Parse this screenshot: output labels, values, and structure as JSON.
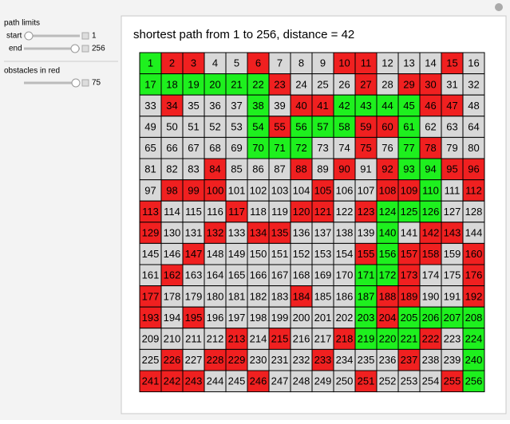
{
  "controls": {
    "section1": "path limits",
    "start_label": "start",
    "start_value": 1,
    "end_label": "end",
    "end_value": 256,
    "section2": "obstacles in red",
    "obstacles_value": 75
  },
  "title": "shortest path from 1 to 256, distance = 42",
  "grid": {
    "numbers": [
      [
        1,
        2,
        3,
        4,
        5,
        6,
        7,
        8,
        9,
        10,
        11,
        12,
        13,
        14,
        15,
        16
      ],
      [
        17,
        18,
        19,
        20,
        21,
        22,
        23,
        24,
        25,
        26,
        27,
        28,
        29,
        30,
        31,
        32
      ],
      [
        33,
        34,
        35,
        36,
        37,
        38,
        39,
        40,
        41,
        42,
        43,
        44,
        45,
        46,
        47,
        48
      ],
      [
        49,
        50,
        51,
        52,
        53,
        54,
        55,
        56,
        57,
        58,
        59,
        60,
        61,
        62,
        63,
        64
      ],
      [
        65,
        66,
        67,
        68,
        69,
        70,
        71,
        72,
        73,
        74,
        75,
        76,
        77,
        78,
        79,
        80
      ],
      [
        81,
        82,
        83,
        84,
        85,
        86,
        87,
        88,
        89,
        90,
        91,
        92,
        93,
        94,
        95,
        96
      ],
      [
        97,
        98,
        99,
        100,
        101,
        102,
        103,
        104,
        105,
        106,
        107,
        108,
        109,
        110,
        111,
        112
      ],
      [
        113,
        114,
        115,
        116,
        117,
        118,
        119,
        120,
        121,
        122,
        123,
        124,
        125,
        126,
        127,
        128
      ],
      [
        129,
        130,
        131,
        132,
        133,
        134,
        135,
        136,
        137,
        138,
        139,
        140,
        141,
        142,
        143,
        144
      ],
      [
        145,
        146,
        147,
        148,
        149,
        150,
        151,
        152,
        153,
        154,
        155,
        156,
        157,
        158,
        159,
        160
      ],
      [
        161,
        162,
        163,
        164,
        165,
        166,
        167,
        168,
        169,
        170,
        171,
        172,
        173,
        174,
        175,
        176
      ],
      [
        177,
        178,
        179,
        180,
        181,
        182,
        183,
        184,
        185,
        186,
        187,
        188,
        189,
        190,
        191,
        192
      ],
      [
        193,
        194,
        195,
        196,
        197,
        198,
        199,
        200,
        201,
        202,
        203,
        204,
        205,
        206,
        207,
        208
      ],
      [
        209,
        210,
        211,
        212,
        213,
        214,
        215,
        216,
        217,
        218,
        219,
        220,
        221,
        222,
        223,
        224
      ],
      [
        225,
        226,
        227,
        228,
        229,
        230,
        231,
        232,
        233,
        234,
        235,
        236,
        237,
        238,
        239,
        240
      ],
      [
        241,
        242,
        243,
        244,
        245,
        246,
        247,
        248,
        249,
        250,
        251,
        252,
        253,
        254,
        255,
        256
      ]
    ],
    "colors": [
      [
        "green",
        "red",
        "red",
        "gray",
        "gray",
        "red",
        "gray",
        "gray",
        "gray",
        "red",
        "red",
        "gray",
        "gray",
        "gray",
        "red",
        "gray"
      ],
      [
        "green",
        "green",
        "green",
        "green",
        "green",
        "green",
        "red",
        "gray",
        "gray",
        "gray",
        "red",
        "gray",
        "red",
        "red",
        "gray",
        "gray"
      ],
      [
        "gray",
        "red",
        "gray",
        "gray",
        "gray",
        "green",
        "gray",
        "red",
        "red",
        "green",
        "green",
        "green",
        "green",
        "red",
        "red",
        "gray"
      ],
      [
        "gray",
        "gray",
        "gray",
        "gray",
        "gray",
        "green",
        "red",
        "green",
        "green",
        "green",
        "red",
        "red",
        "green",
        "gray",
        "gray",
        "gray"
      ],
      [
        "gray",
        "gray",
        "gray",
        "gray",
        "gray",
        "green",
        "green",
        "green",
        "gray",
        "gray",
        "red",
        "gray",
        "green",
        "red",
        "gray",
        "gray"
      ],
      [
        "gray",
        "gray",
        "gray",
        "red",
        "gray",
        "gray",
        "gray",
        "red",
        "gray",
        "red",
        "gray",
        "red",
        "green",
        "green",
        "red",
        "red"
      ],
      [
        "gray",
        "red",
        "red",
        "red",
        "gray",
        "gray",
        "gray",
        "gray",
        "red",
        "gray",
        "gray",
        "red",
        "red",
        "green",
        "gray",
        "red"
      ],
      [
        "red",
        "gray",
        "gray",
        "gray",
        "red",
        "gray",
        "gray",
        "red",
        "red",
        "gray",
        "red",
        "green",
        "green",
        "green",
        "gray",
        "gray"
      ],
      [
        "red",
        "gray",
        "gray",
        "red",
        "gray",
        "red",
        "red",
        "gray",
        "gray",
        "gray",
        "gray",
        "green",
        "gray",
        "red",
        "red",
        "gray"
      ],
      [
        "gray",
        "gray",
        "red",
        "gray",
        "gray",
        "gray",
        "gray",
        "gray",
        "gray",
        "gray",
        "red",
        "green",
        "red",
        "red",
        "gray",
        "red"
      ],
      [
        "gray",
        "red",
        "gray",
        "gray",
        "gray",
        "gray",
        "gray",
        "gray",
        "gray",
        "gray",
        "green",
        "green",
        "red",
        "gray",
        "gray",
        "red"
      ],
      [
        "red",
        "gray",
        "gray",
        "gray",
        "gray",
        "gray",
        "gray",
        "red",
        "gray",
        "gray",
        "green",
        "red",
        "red",
        "gray",
        "gray",
        "red"
      ],
      [
        "red",
        "gray",
        "red",
        "gray",
        "gray",
        "gray",
        "gray",
        "gray",
        "gray",
        "gray",
        "green",
        "red",
        "green",
        "green",
        "green",
        "green"
      ],
      [
        "gray",
        "gray",
        "gray",
        "gray",
        "red",
        "gray",
        "red",
        "gray",
        "gray",
        "red",
        "green",
        "green",
        "green",
        "red",
        "gray",
        "green"
      ],
      [
        "gray",
        "red",
        "gray",
        "red",
        "red",
        "gray",
        "gray",
        "gray",
        "red",
        "gray",
        "gray",
        "gray",
        "red",
        "gray",
        "gray",
        "green"
      ],
      [
        "red",
        "red",
        "red",
        "gray",
        "gray",
        "red",
        "gray",
        "gray",
        "gray",
        "gray",
        "red",
        "gray",
        "gray",
        "gray",
        "red",
        "green"
      ]
    ]
  }
}
